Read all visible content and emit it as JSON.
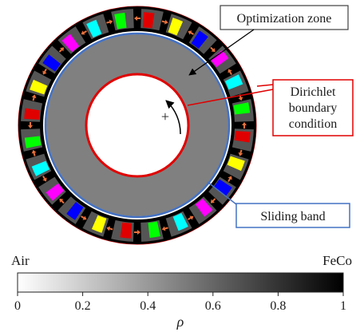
{
  "annotations": {
    "optimization_zone": "Optimization zone",
    "dirichlet_line1": "Dirichlet",
    "dirichlet_line2": "boundary",
    "dirichlet_line3": "condition",
    "sliding_band": "Sliding band",
    "rotation_sign": "+"
  },
  "colorbar": {
    "left_label": "Air",
    "right_label": "FeCo",
    "ticks": [
      "0",
      "0.2",
      "0.4",
      "0.6",
      "0.8",
      "1"
    ],
    "variable": "ρ",
    "colors": {
      "min": "#ffffff",
      "max": "#000000"
    }
  },
  "stator": {
    "slot_count": 24,
    "magnet_colors": [
      "#e00000",
      "#ffff00",
      "#0000ff",
      "#ff00ff",
      "#00ffff",
      "#00ff00"
    ],
    "arrow_color": "#e8703a",
    "tooth_color": "#000000",
    "slot_fill_color": "#555555"
  },
  "rotor": {
    "design_fill_color": "#808080",
    "boundary_color": "#e00000",
    "sliding_band_color": "#4472c4"
  },
  "box_border_colors": {
    "optimization_zone": "#404040",
    "dirichlet": "#e00000",
    "sliding_band": "#4472c4"
  }
}
